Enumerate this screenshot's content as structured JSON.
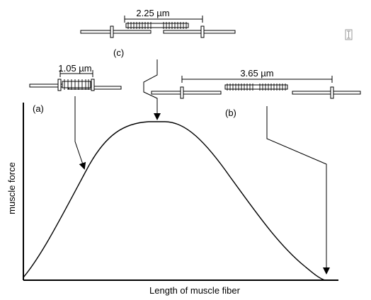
{
  "figure": {
    "y_axis_label": "muscle force",
    "x_axis_label": "Length of muscle fiber",
    "panels": {
      "a": {
        "tag": "(a)",
        "width_label": "1.05 µm"
      },
      "b": {
        "tag": "(b)",
        "width_label": "3.65 µm"
      },
      "c": {
        "tag": "(c)",
        "width_label": "2.25 µm"
      }
    },
    "colors": {
      "ink": "#000000",
      "background": "#ffffff",
      "cursor_glyph": "#9a9a9a"
    },
    "icons": {
      "cursor": "text-cursor-icon"
    }
  }
}
